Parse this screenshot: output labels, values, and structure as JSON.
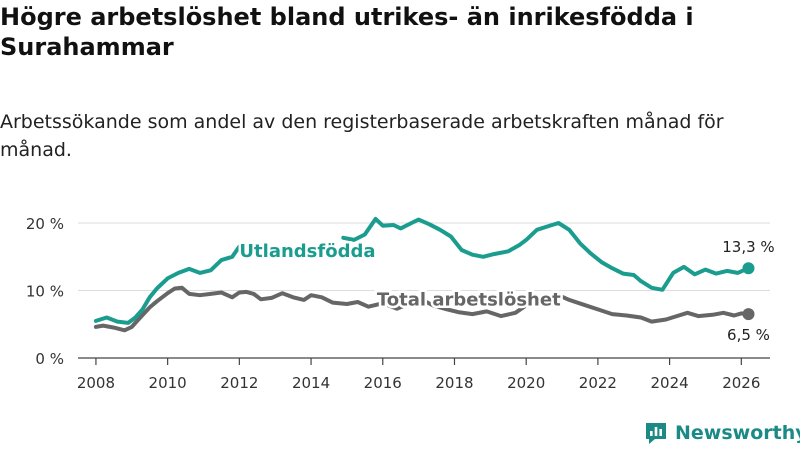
{
  "title": "Högre arbetslöshet bland utrikes- än inrikesfödda i Surahammar",
  "subtitle": "Arbetssökande som andel av den registerbaserade arbetskraften månad för månad.",
  "logo": {
    "text": "Newsworthy",
    "icon": "bar-chart-icon",
    "color": "#1b8a87"
  },
  "chart_data": {
    "type": "line",
    "title": "Högre arbetslöshet bland utrikes- än inrikesfödda i Surahammar",
    "xlabel": "",
    "ylabel": "",
    "xlim": [
      2007.5,
      2026.8
    ],
    "ylim": [
      0,
      20
    ],
    "grid": true,
    "x_ticks": [
      2008,
      2010,
      2012,
      2014,
      2016,
      2018,
      2020,
      2022,
      2024,
      2026
    ],
    "x_tick_labels": [
      "2008",
      "2010",
      "2012",
      "2014",
      "2016",
      "2018",
      "2020",
      "2022",
      "2024",
      "2026"
    ],
    "y_ticks": [
      0,
      10,
      20
    ],
    "y_tick_labels": [
      "0 %",
      "10 %",
      "20 %"
    ],
    "series": [
      {
        "name": "Total arbetslöshet",
        "color": "#666666",
        "end_label": "6,5 %",
        "points": [
          [
            2008.0,
            4.6
          ],
          [
            2008.2,
            4.8
          ],
          [
            2008.5,
            4.5
          ],
          [
            2008.8,
            4.1
          ],
          [
            2009.0,
            4.6
          ],
          [
            2009.2,
            5.8
          ],
          [
            2009.5,
            7.5
          ],
          [
            2009.7,
            8.4
          ],
          [
            2010.0,
            9.6
          ],
          [
            2010.2,
            10.3
          ],
          [
            2010.4,
            10.4
          ],
          [
            2010.6,
            9.5
          ],
          [
            2010.9,
            9.3
          ],
          [
            2011.2,
            9.5
          ],
          [
            2011.5,
            9.7
          ],
          [
            2011.8,
            9.0
          ],
          [
            2012.0,
            9.7
          ],
          [
            2012.2,
            9.8
          ],
          [
            2012.4,
            9.5
          ],
          [
            2012.6,
            8.7
          ],
          [
            2012.9,
            8.9
          ],
          [
            2013.2,
            9.6
          ],
          [
            2013.5,
            9.0
          ],
          [
            2013.8,
            8.6
          ],
          [
            2014.0,
            9.3
          ],
          [
            2014.3,
            9.0
          ],
          [
            2014.6,
            8.2
          ],
          [
            2015.0,
            8.0
          ],
          [
            2015.3,
            8.3
          ],
          [
            2015.6,
            7.6
          ],
          [
            2016.0,
            8.1
          ],
          [
            2016.4,
            7.3
          ],
          [
            2016.8,
            8.2
          ],
          [
            2017.1,
            8.6
          ],
          [
            2017.4,
            7.8
          ],
          [
            2017.8,
            7.2
          ],
          [
            2018.1,
            6.8
          ],
          [
            2018.5,
            6.5
          ],
          [
            2018.9,
            6.9
          ],
          [
            2019.3,
            6.2
          ],
          [
            2019.7,
            6.7
          ],
          [
            2020.0,
            7.8
          ],
          [
            2020.3,
            8.6
          ],
          [
            2020.6,
            9.1
          ],
          [
            2020.9,
            9.3
          ],
          [
            2021.2,
            8.6
          ],
          [
            2021.6,
            7.9
          ],
          [
            2022.0,
            7.2
          ],
          [
            2022.4,
            6.5
          ],
          [
            2022.8,
            6.3
          ],
          [
            2023.2,
            6.0
          ],
          [
            2023.5,
            5.4
          ],
          [
            2023.9,
            5.7
          ],
          [
            2024.2,
            6.2
          ],
          [
            2024.5,
            6.7
          ],
          [
            2024.8,
            6.2
          ],
          [
            2025.2,
            6.4
          ],
          [
            2025.5,
            6.7
          ],
          [
            2025.8,
            6.3
          ],
          [
            2026.0,
            6.6
          ],
          [
            2026.2,
            6.5
          ]
        ]
      },
      {
        "name": "Utlandsfödda",
        "color": "#1a9c8f",
        "end_label": "13,3 %",
        "points": [
          [
            2008.0,
            5.5
          ],
          [
            2008.3,
            6.0
          ],
          [
            2008.6,
            5.4
          ],
          [
            2008.9,
            5.2
          ],
          [
            2009.1,
            6.0
          ],
          [
            2009.3,
            7.2
          ],
          [
            2009.5,
            9.0
          ],
          [
            2009.7,
            10.3
          ],
          [
            2010.0,
            11.8
          ],
          [
            2010.3,
            12.6
          ],
          [
            2010.6,
            13.2
          ],
          [
            2010.9,
            12.6
          ],
          [
            2011.2,
            13.0
          ],
          [
            2011.5,
            14.5
          ],
          [
            2011.8,
            15.0
          ],
          [
            2012.0,
            16.5
          ],
          [
            2014.9,
            17.8
          ],
          [
            2015.2,
            17.5
          ],
          [
            2015.5,
            18.3
          ],
          [
            2015.8,
            20.6
          ],
          [
            2016.0,
            19.6
          ],
          [
            2016.3,
            19.7
          ],
          [
            2016.5,
            19.2
          ],
          [
            2016.8,
            20.0
          ],
          [
            2017.0,
            20.5
          ],
          [
            2017.3,
            19.8
          ],
          [
            2017.6,
            19.0
          ],
          [
            2017.9,
            18.0
          ],
          [
            2018.2,
            16.0
          ],
          [
            2018.5,
            15.3
          ],
          [
            2018.8,
            15.0
          ],
          [
            2019.1,
            15.4
          ],
          [
            2019.5,
            15.8
          ],
          [
            2019.8,
            16.7
          ],
          [
            2020.0,
            17.5
          ],
          [
            2020.3,
            19.0
          ],
          [
            2020.6,
            19.5
          ],
          [
            2020.9,
            20.0
          ],
          [
            2021.2,
            19.0
          ],
          [
            2021.5,
            17.0
          ],
          [
            2021.8,
            15.5
          ],
          [
            2022.1,
            14.2
          ],
          [
            2022.4,
            13.3
          ],
          [
            2022.7,
            12.5
          ],
          [
            2023.0,
            12.3
          ],
          [
            2023.2,
            11.4
          ],
          [
            2023.5,
            10.4
          ],
          [
            2023.8,
            10.1
          ],
          [
            2024.1,
            12.6
          ],
          [
            2024.4,
            13.5
          ],
          [
            2024.7,
            12.4
          ],
          [
            2025.0,
            13.1
          ],
          [
            2025.3,
            12.5
          ],
          [
            2025.6,
            12.9
          ],
          [
            2025.9,
            12.6
          ],
          [
            2026.2,
            13.3
          ]
        ]
      }
    ],
    "annotations": [
      {
        "text": "Utlandsfödda",
        "series": "Utlandsfödda",
        "color": "#1a9c8f",
        "at": [
          2013.9,
          15
        ]
      },
      {
        "text": "Total arbetslöshet",
        "series": "Total arbetslöshet",
        "color": "#666666",
        "at": [
          2018.4,
          7.8
        ]
      }
    ]
  }
}
